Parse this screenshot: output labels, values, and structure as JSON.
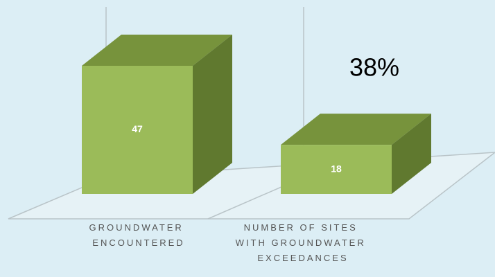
{
  "chart_data": {
    "type": "bar3d",
    "categories": [
      "GROUNDWATER ENCOUNTERED",
      "NUMBER OF SITES WITH GROUNDWATER EXCEEDANCES"
    ],
    "values": [
      47,
      18
    ],
    "annotation": "38%",
    "color": "#9bbb59"
  }
}
